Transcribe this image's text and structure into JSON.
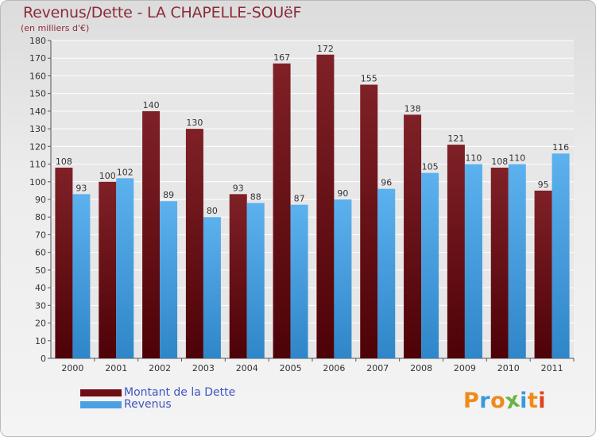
{
  "title": "Revenus/Dette - LA CHAPELLE-SOUëF",
  "subtitle": "(en milliers d'€)",
  "logo_text": "Proxiti",
  "colors": {
    "dette": "#6e0e14",
    "revenus": "#4aa0e2",
    "title": "#8a2c39",
    "legend_text": "#3f54c4",
    "logo": [
      "#f08a1a",
      "#3a9ad9",
      "#f08a1a",
      "#6ab445",
      "#3a9ad9",
      "#f08a1a",
      "#e2401e"
    ]
  },
  "chart_data": {
    "type": "bar",
    "categories": [
      "2000",
      "2001",
      "2002",
      "2003",
      "2004",
      "2005",
      "2006",
      "2007",
      "2008",
      "2009",
      "2010",
      "2011"
    ],
    "series": [
      {
        "name": "Montant de la Dette",
        "values": [
          108,
          100,
          140,
          130,
          93,
          167,
          172,
          155,
          138,
          121,
          108,
          95
        ]
      },
      {
        "name": "Revenus",
        "values": [
          93,
          102,
          89,
          80,
          88,
          87,
          90,
          96,
          105,
          110,
          110,
          116
        ]
      }
    ],
    "ylim": [
      0,
      180
    ],
    "yticks": [
      0,
      10,
      20,
      30,
      40,
      50,
      60,
      70,
      80,
      90,
      100,
      110,
      120,
      130,
      140,
      150,
      160,
      170,
      180
    ],
    "grid": true,
    "legend": "bottom-left"
  }
}
